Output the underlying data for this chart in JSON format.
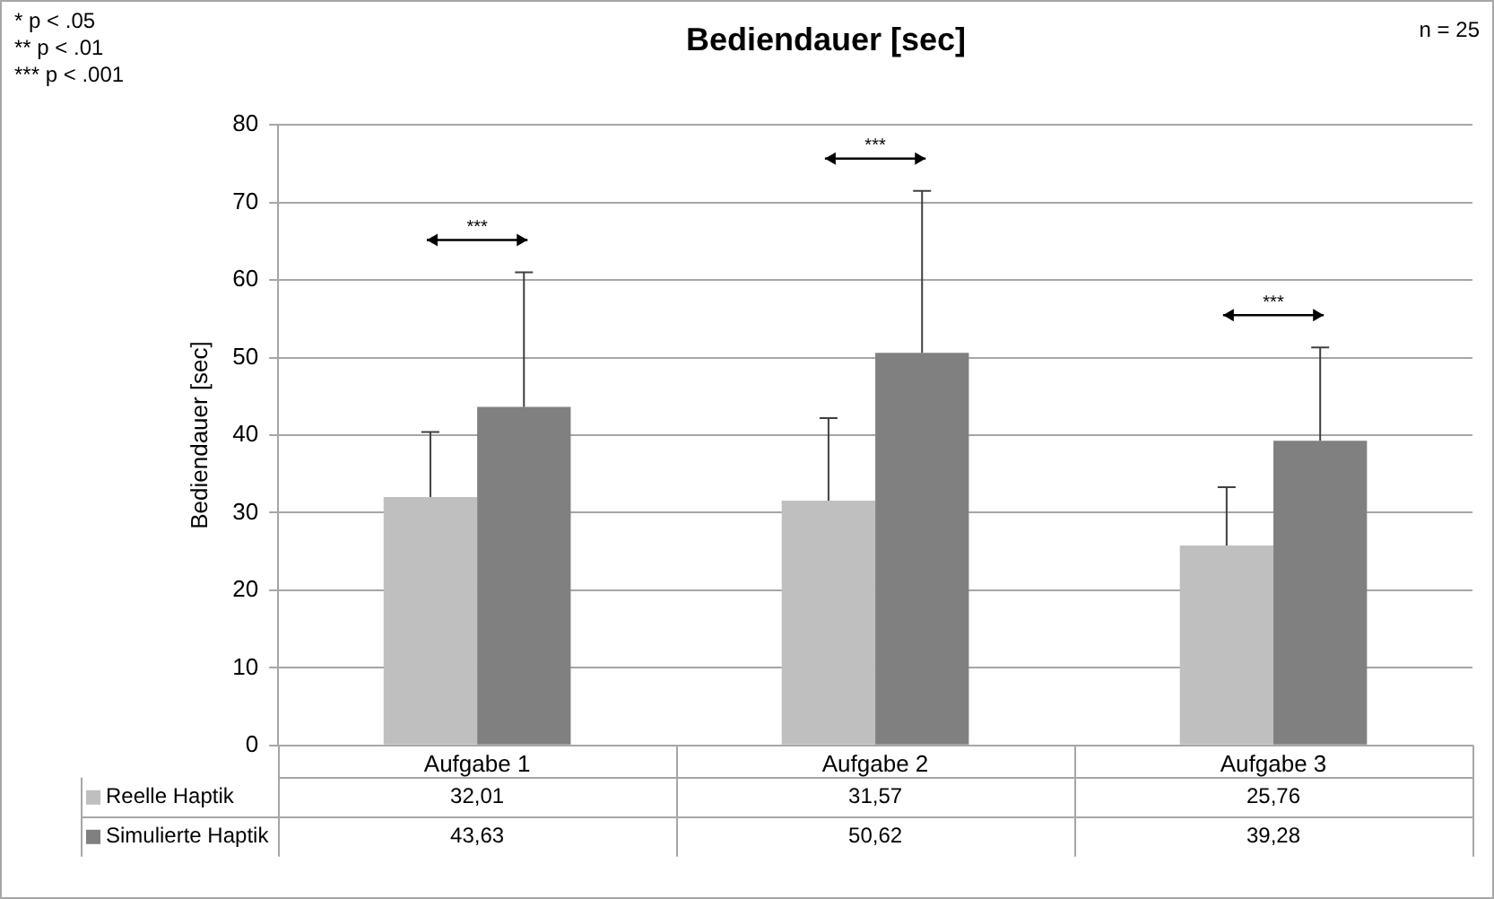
{
  "chart_data": {
    "type": "bar",
    "title": "Bediendauer [sec]",
    "ylabel": "Bediendauer [sec]",
    "categories": [
      "Aufgabe 1",
      "Aufgabe 2",
      "Aufgabe 3"
    ],
    "series": [
      {
        "name": "Reelle Haptik",
        "color": "#bfbfbf",
        "values": [
          32.01,
          31.57,
          25.76
        ],
        "value_labels": [
          "32,01",
          "31,57",
          "25,76"
        ],
        "errors": [
          [
            32.01,
            40.4
          ],
          [
            31.57,
            42.2
          ],
          [
            25.76,
            33.3
          ]
        ]
      },
      {
        "name": "Simulierte Haptik",
        "color": "#808080",
        "values": [
          43.63,
          50.62,
          39.28
        ],
        "value_labels": [
          "43,63",
          "50,62",
          "39,28"
        ],
        "errors": [
          [
            43.63,
            61
          ],
          [
            50.62,
            71.5
          ],
          [
            39.28,
            51.3
          ]
        ]
      }
    ],
    "ylim": [
      0,
      80
    ],
    "yticks": [
      0,
      10,
      20,
      30,
      40,
      50,
      60,
      70,
      80
    ],
    "grid": "y",
    "legend": "bottom",
    "annotations": [
      "* p < .05",
      "** p < .01",
      "*** p < .001",
      "n = 25",
      "***",
      "***",
      "***"
    ]
  }
}
